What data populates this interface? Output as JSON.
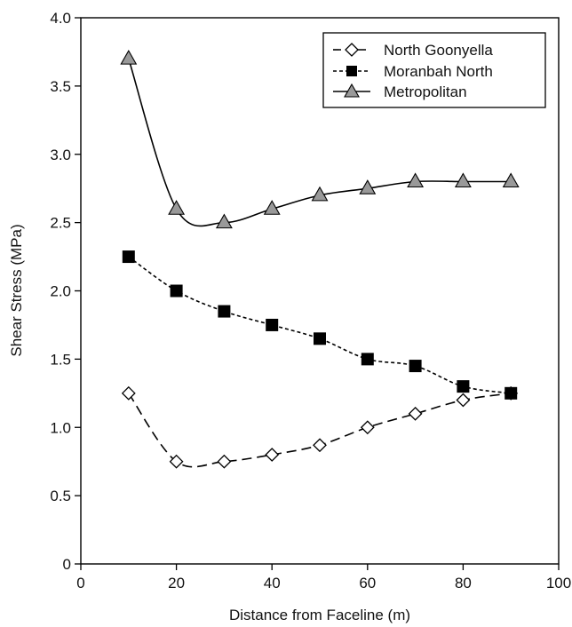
{
  "chart_data": {
    "type": "line",
    "title": "",
    "xlabel": "Distance from Faceline (m)",
    "ylabel": "Shear Stress (MPa)",
    "xlim": [
      0,
      100
    ],
    "ylim": [
      0,
      4.0
    ],
    "xticks": [
      0,
      20,
      40,
      60,
      80,
      100
    ],
    "xtick_labels": [
      "0",
      "20",
      "40",
      "60",
      "80",
      "100"
    ],
    "yticks": [
      0,
      0.5,
      1.0,
      1.5,
      2.0,
      2.5,
      3.0,
      3.5,
      4.0
    ],
    "ytick_labels": [
      "0",
      "0.5",
      "1.0",
      "1.5",
      "2.0",
      "2.5",
      "3.0",
      "3.5",
      "4.0"
    ],
    "grid": false,
    "legend_position": "top-right",
    "x": [
      10,
      20,
      30,
      40,
      50,
      60,
      70,
      80,
      90
    ],
    "series": [
      {
        "name": "North Goonyella",
        "marker": "diamond-open",
        "line_style": "long-dash",
        "color": "#000000",
        "values": [
          1.25,
          0.75,
          0.75,
          0.8,
          0.87,
          1.0,
          1.1,
          1.2,
          1.25
        ]
      },
      {
        "name": "Moranbah North",
        "marker": "square-filled",
        "line_style": "short-dash",
        "color": "#000000",
        "values": [
          2.25,
          2.0,
          1.85,
          1.75,
          1.65,
          1.5,
          1.45,
          1.3,
          1.25
        ]
      },
      {
        "name": "Metropolitan",
        "marker": "triangle-gray",
        "line_style": "solid",
        "color": "#999999",
        "values": [
          3.7,
          2.6,
          2.5,
          2.6,
          2.7,
          2.75,
          2.8,
          2.8,
          2.8
        ]
      }
    ]
  }
}
